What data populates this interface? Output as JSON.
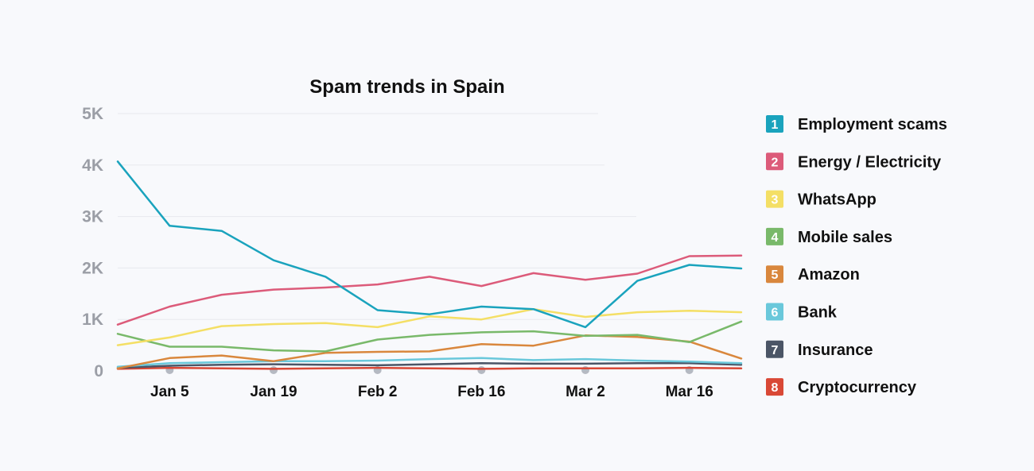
{
  "chart_data": {
    "type": "line",
    "title": "Spam trends in Spain",
    "xlabel": "",
    "ylabel": "",
    "ylim": [
      0,
      5000
    ],
    "y_ticks": [
      {
        "value": 0,
        "label": "0"
      },
      {
        "value": 1000,
        "label": "1K"
      },
      {
        "value": 2000,
        "label": "2K"
      },
      {
        "value": 3000,
        "label": "3K"
      },
      {
        "value": 4000,
        "label": "4K"
      },
      {
        "value": 5000,
        "label": "5K"
      }
    ],
    "x_ticks": [
      "Jan 5",
      "Jan 19",
      "Feb 2",
      "Feb 16",
      "Mar 2",
      "Mar 16"
    ],
    "grid": true,
    "legend_position": "right",
    "series": [
      {
        "number": "1",
        "name": "Employment scams",
        "color": "#1aa3bd",
        "values": [
          4070,
          2820,
          2720,
          2150,
          1830,
          1180,
          1100,
          1250,
          1200,
          850,
          1750,
          2060,
          1990
        ]
      },
      {
        "number": "2",
        "name": "Energy / Electricity",
        "color": "#dc5b7a",
        "values": [
          900,
          1250,
          1480,
          1580,
          1620,
          1680,
          1830,
          1650,
          1900,
          1770,
          1890,
          2230,
          2240
        ]
      },
      {
        "number": "3",
        "name": "WhatsApp",
        "color": "#f4df65",
        "values": [
          500,
          650,
          870,
          910,
          930,
          850,
          1060,
          1000,
          1200,
          1050,
          1140,
          1170,
          1140
        ]
      },
      {
        "number": "4",
        "name": "Mobile sales",
        "color": "#79b96a",
        "values": [
          720,
          470,
          470,
          400,
          380,
          610,
          700,
          750,
          770,
          680,
          700,
          560,
          960
        ]
      },
      {
        "number": "5",
        "name": "Amazon",
        "color": "#d9873d",
        "values": [
          50,
          250,
          300,
          190,
          350,
          370,
          380,
          520,
          490,
          690,
          660,
          570,
          240
        ]
      },
      {
        "number": "6",
        "name": "Bank",
        "color": "#6ac8db",
        "values": [
          80,
          150,
          170,
          190,
          190,
          200,
          230,
          250,
          210,
          230,
          200,
          180,
          150
        ]
      },
      {
        "number": "7",
        "name": "Insurance",
        "color": "#4b5566",
        "values": [
          60,
          100,
          120,
          130,
          120,
          110,
          130,
          150,
          140,
          140,
          150,
          150,
          120
        ]
      },
      {
        "number": "8",
        "name": "Cryptocurrency",
        "color": "#d94836",
        "values": [
          40,
          60,
          50,
          40,
          50,
          60,
          50,
          40,
          50,
          50,
          50,
          60,
          50
        ]
      }
    ]
  }
}
